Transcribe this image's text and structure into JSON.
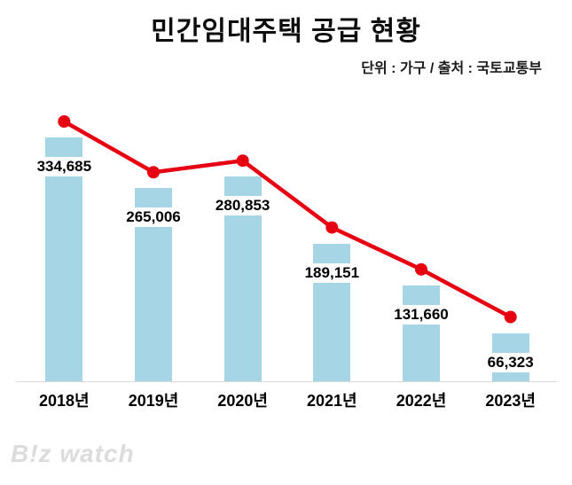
{
  "watermark": "B!z watch",
  "chart_data": {
    "type": "bar",
    "title": "민간임대주택 공급 현황",
    "subtitle": "단위 : 가구 / 출처 : 국토교통부",
    "categories": [
      "2018년",
      "2019년",
      "2020년",
      "2021년",
      "2022년",
      "2023년"
    ],
    "values": [
      334685,
      265006,
      280853,
      189151,
      131660,
      66323
    ],
    "value_labels": [
      "334,685",
      "265,006",
      "280,853",
      "189,151",
      "131,660",
      "66,323"
    ],
    "series_note": "red trend line overlays the same values as the bars",
    "bar_color": "#a6d6e6",
    "line_color": "#e60012",
    "xlabel": "",
    "ylabel": "",
    "ylim": [
      0,
      360000
    ],
    "grid": false,
    "legend": "none"
  }
}
